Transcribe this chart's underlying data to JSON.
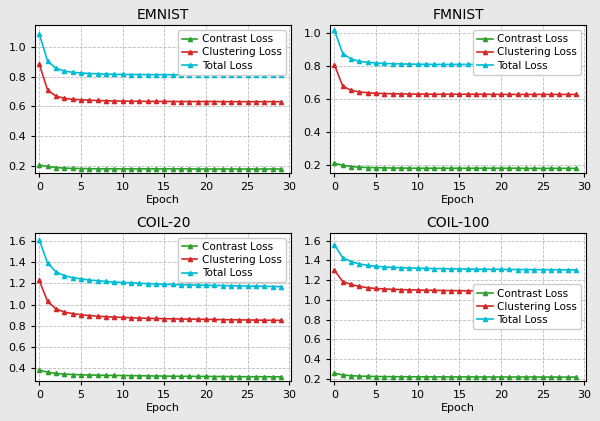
{
  "titles": [
    "EMNIST",
    "FMNIST",
    "COIL-20",
    "COIL-100"
  ],
  "xlabel": "Epoch",
  "legend_labels": [
    "Contrast Loss",
    "Clustering Loss",
    "Total Loss"
  ],
  "colors": [
    "#2ca02c",
    "#d62728",
    "#00bcd4"
  ],
  "marker": "^",
  "markersize": 3,
  "linewidth": 1.2,
  "datasets": {
    "EMNIST": {
      "contrast": [
        0.205,
        0.195,
        0.188,
        0.184,
        0.182,
        0.181,
        0.18,
        0.179,
        0.179,
        0.179,
        0.179,
        0.179,
        0.179,
        0.179,
        0.179,
        0.179,
        0.179,
        0.179,
        0.179,
        0.178,
        0.178,
        0.178,
        0.178,
        0.178,
        0.178,
        0.178,
        0.178,
        0.178,
        0.178,
        0.178
      ],
      "clustering": [
        0.885,
        0.71,
        0.67,
        0.655,
        0.648,
        0.645,
        0.642,
        0.64,
        0.638,
        0.637,
        0.636,
        0.635,
        0.635,
        0.634,
        0.634,
        0.634,
        0.633,
        0.633,
        0.633,
        0.633,
        0.633,
        0.633,
        0.632,
        0.632,
        0.632,
        0.632,
        0.632,
        0.632,
        0.632,
        0.632
      ],
      "total": [
        1.09,
        0.905,
        0.858,
        0.839,
        0.83,
        0.826,
        0.822,
        0.82,
        0.818,
        0.817,
        0.816,
        0.815,
        0.815,
        0.814,
        0.814,
        0.814,
        0.813,
        0.813,
        0.813,
        0.813,
        0.813,
        0.812,
        0.812,
        0.812,
        0.812,
        0.812,
        0.812,
        0.812,
        0.812,
        0.812
      ]
    },
    "FMNIST": {
      "contrast": [
        0.21,
        0.198,
        0.19,
        0.186,
        0.184,
        0.183,
        0.182,
        0.181,
        0.181,
        0.18,
        0.18,
        0.18,
        0.18,
        0.18,
        0.18,
        0.18,
        0.18,
        0.18,
        0.18,
        0.18,
        0.18,
        0.18,
        0.18,
        0.179,
        0.179,
        0.179,
        0.179,
        0.179,
        0.179,
        0.179
      ],
      "clustering": [
        0.808,
        0.678,
        0.653,
        0.643,
        0.638,
        0.635,
        0.633,
        0.632,
        0.631,
        0.63,
        0.63,
        0.63,
        0.629,
        0.629,
        0.629,
        0.629,
        0.629,
        0.629,
        0.629,
        0.628,
        0.628,
        0.628,
        0.628,
        0.628,
        0.628,
        0.628,
        0.628,
        0.628,
        0.628,
        0.628
      ],
      "total": [
        1.018,
        0.876,
        0.843,
        0.829,
        0.823,
        0.819,
        0.816,
        0.814,
        0.813,
        0.812,
        0.811,
        0.811,
        0.81,
        0.81,
        0.81,
        0.81,
        0.81,
        0.81,
        0.81,
        0.809,
        0.809,
        0.809,
        0.809,
        0.809,
        0.809,
        0.809,
        0.809,
        0.809,
        0.809,
        0.809
      ]
    },
    "COIL-20": {
      "contrast": [
        0.382,
        0.362,
        0.35,
        0.344,
        0.34,
        0.337,
        0.335,
        0.334,
        0.332,
        0.331,
        0.33,
        0.329,
        0.328,
        0.327,
        0.326,
        0.325,
        0.324,
        0.323,
        0.323,
        0.322,
        0.322,
        0.321,
        0.321,
        0.32,
        0.32,
        0.319,
        0.319,
        0.319,
        0.318,
        0.318
      ],
      "clustering": [
        1.228,
        1.03,
        0.96,
        0.93,
        0.915,
        0.905,
        0.897,
        0.891,
        0.886,
        0.882,
        0.879,
        0.876,
        0.873,
        0.871,
        0.869,
        0.867,
        0.866,
        0.864,
        0.863,
        0.862,
        0.861,
        0.86,
        0.858,
        0.857,
        0.856,
        0.855,
        0.854,
        0.853,
        0.852,
        0.851
      ],
      "total": [
        1.61,
        1.392,
        1.31,
        1.274,
        1.255,
        1.243,
        1.232,
        1.226,
        1.219,
        1.213,
        1.21,
        1.206,
        1.201,
        1.198,
        1.195,
        1.193,
        1.19,
        1.188,
        1.186,
        1.184,
        1.183,
        1.181,
        1.18,
        1.178,
        1.177,
        1.175,
        1.174,
        1.173,
        1.171,
        1.17
      ]
    },
    "COIL-100": {
      "contrast": [
        0.258,
        0.24,
        0.232,
        0.228,
        0.226,
        0.224,
        0.223,
        0.222,
        0.222,
        0.221,
        0.221,
        0.221,
        0.22,
        0.22,
        0.22,
        0.22,
        0.22,
        0.22,
        0.219,
        0.219,
        0.219,
        0.219,
        0.219,
        0.219,
        0.219,
        0.218,
        0.218,
        0.218,
        0.218,
        0.218
      ],
      "clustering": [
        1.3,
        1.185,
        1.155,
        1.135,
        1.122,
        1.115,
        1.11,
        1.106,
        1.103,
        1.101,
        1.099,
        1.097,
        1.096,
        1.094,
        1.093,
        1.092,
        1.091,
        1.09,
        1.09,
        1.089,
        1.088,
        1.088,
        1.087,
        1.087,
        1.086,
        1.086,
        1.085,
        1.085,
        1.084,
        1.084
      ],
      "total": [
        1.558,
        1.425,
        1.387,
        1.363,
        1.348,
        1.339,
        1.333,
        1.328,
        1.325,
        1.322,
        1.32,
        1.318,
        1.316,
        1.315,
        1.313,
        1.312,
        1.311,
        1.31,
        1.309,
        1.309,
        1.308,
        1.307,
        1.306,
        1.306,
        1.305,
        1.305,
        1.304,
        1.304,
        1.303,
        1.302
      ]
    }
  },
  "ylims": {
    "EMNIST": [
      0.15,
      1.15
    ],
    "FMNIST": [
      0.15,
      1.05
    ],
    "COIL-20": [
      0.28,
      1.68
    ],
    "COIL-100": [
      0.18,
      1.68
    ]
  },
  "yticks": {
    "EMNIST": [
      0.2,
      0.4,
      0.6,
      0.8,
      1.0
    ],
    "FMNIST": [
      0.2,
      0.4,
      0.6,
      0.8,
      1.0
    ],
    "COIL-20": [
      0.4,
      0.6,
      0.8,
      1.0,
      1.2,
      1.4,
      1.6
    ],
    "COIL-100": [
      0.2,
      0.4,
      0.6,
      0.8,
      1.0,
      1.2,
      1.4,
      1.6
    ]
  },
  "legend_loc": {
    "EMNIST": "upper right",
    "FMNIST": "upper right",
    "COIL-20": "upper right",
    "COIL-100": "center right"
  },
  "grid_color": "#aaaaaa",
  "grid_style": "--",
  "bg_color": "#ffffff",
  "fig_bg": "#e8e8e8",
  "title_fontsize": 10,
  "axis_label_fontsize": 8,
  "tick_fontsize": 8,
  "legend_fontsize": 7.5
}
